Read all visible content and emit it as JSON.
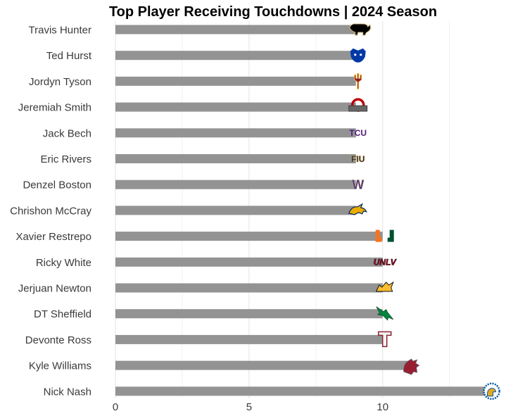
{
  "chart_data": {
    "type": "bar",
    "orientation": "horizontal",
    "title": "Top Player Receiving Touchdowns | 2024 Season",
    "xlabel": "",
    "ylabel": "",
    "xlim": [
      0,
      14.3
    ],
    "xticks": [
      0,
      5,
      10
    ],
    "grid": true,
    "categories": [
      "Travis Hunter",
      "Ted Hurst",
      "Jordyn Tyson",
      "Jeremiah Smith",
      "Jack Bech",
      "Eric Rivers",
      "Denzel Boston",
      "Chrishon McCray",
      "Xavier Restrepo",
      "Ricky White",
      "Jerjuan Newton",
      "DT Sheffield",
      "Devonte Ross",
      "Kyle Williams",
      "Nick Nash"
    ],
    "values": [
      9,
      9,
      9,
      9,
      9,
      9,
      9,
      9,
      10,
      10,
      10,
      10,
      10,
      11,
      14
    ],
    "bar_color": "#939393",
    "logos": [
      {
        "team": "Colorado",
        "icon": "buffalo-logo",
        "color": "#000000",
        "accent": "#cfb87c"
      },
      {
        "team": "Georgia State",
        "icon": "panther-logo",
        "color": "#0039a6",
        "accent": "#ffffff"
      },
      {
        "team": "Arizona State",
        "icon": "pitchfork-logo",
        "color": "#8c1d40",
        "accent": "#ffc627"
      },
      {
        "team": "Ohio State",
        "icon": "block-o-logo",
        "color": "#bb0000",
        "accent": "#666666"
      },
      {
        "team": "TCU",
        "icon": "tcu-logo",
        "color": "#4d1979",
        "text": "TCU"
      },
      {
        "team": "FIU",
        "icon": "fiu-logo",
        "color": "#081e3f",
        "accent": "#b6862c",
        "text": "FIU"
      },
      {
        "team": "Washington",
        "icon": "w-logo",
        "color": "#4b2e83",
        "accent": "#b7a57a",
        "text": "W"
      },
      {
        "team": "Kent State",
        "icon": "golden-flash-logo",
        "color": "#002664",
        "accent": "#eaab00"
      },
      {
        "team": "Miami",
        "icon": "split-u-logo",
        "color": "#f47321",
        "accent": "#005030"
      },
      {
        "team": "UNLV",
        "icon": "unlv-logo",
        "color": "#cf0a2c",
        "accent": "#000000",
        "text": "UNLV"
      },
      {
        "team": "Kennesaw State",
        "icon": "owl-logo",
        "color": "#fdbb30",
        "accent": "#0b1315"
      },
      {
        "team": "North Texas",
        "icon": "eagle-logo",
        "color": "#00853e",
        "accent": "#ffffff"
      },
      {
        "team": "Troy",
        "icon": "t-logo",
        "color": "#8a2432",
        "accent": "#b0b7bc",
        "text": "T"
      },
      {
        "team": "Washington State",
        "icon": "cougar-logo",
        "color": "#981e32",
        "accent": "#5e6a71"
      },
      {
        "team": "San Jose State",
        "icon": "spartan-logo",
        "color": "#0055a2",
        "accent": "#e5a823"
      }
    ]
  }
}
